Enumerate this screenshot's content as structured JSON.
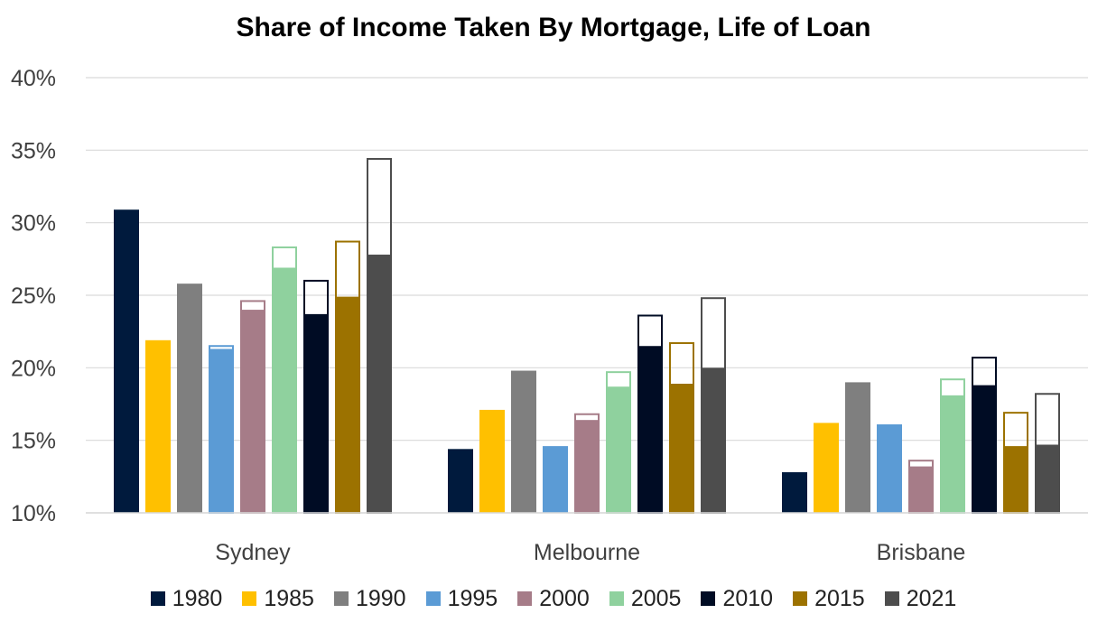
{
  "chart_data": {
    "type": "bar",
    "title": "Share of Income Taken By Mortgage, Life of Loan",
    "categories": [
      "Sydney",
      "Melbourne",
      "Brisbane"
    ],
    "yticks": [
      "10%",
      "15%",
      "20%",
      "25%",
      "30%",
      "35%",
      "40%"
    ],
    "ylim": [
      10,
      40
    ],
    "grid": true,
    "legend_placement": "bottom",
    "series": [
      {
        "name": "1980",
        "color": "#001a3d",
        "values": [
          30.9,
          14.4,
          12.8
        ],
        "outline": [
          null,
          null,
          null
        ]
      },
      {
        "name": "1985",
        "color": "#ffc000",
        "values": [
          21.9,
          17.1,
          16.2
        ],
        "outline": [
          null,
          null,
          null
        ]
      },
      {
        "name": "1990",
        "color": "#7f7f7f",
        "values": [
          25.8,
          19.8,
          19.0
        ],
        "outline": [
          null,
          null,
          null
        ]
      },
      {
        "name": "1995",
        "color": "#5b9bd5",
        "values": [
          21.3,
          14.6,
          16.1
        ],
        "outline": [
          21.5,
          null,
          null
        ]
      },
      {
        "name": "2000",
        "color": "#a67c88",
        "values": [
          24.0,
          16.4,
          13.2
        ],
        "outline": [
          24.6,
          16.8,
          13.6
        ]
      },
      {
        "name": "2005",
        "color": "#8fd19e",
        "values": [
          26.9,
          18.7,
          18.1
        ],
        "outline": [
          28.3,
          19.7,
          19.2
        ]
      },
      {
        "name": "2010",
        "color": "#000c24",
        "values": [
          23.7,
          21.5,
          18.8
        ],
        "outline": [
          26.0,
          23.6,
          20.7
        ]
      },
      {
        "name": "2015",
        "color": "#9c7200",
        "values": [
          24.9,
          18.9,
          14.6
        ],
        "outline": [
          28.7,
          21.7,
          16.9
        ]
      },
      {
        "name": "2021",
        "color": "#4d4d4d",
        "values": [
          27.8,
          20.0,
          14.7
        ],
        "outline": [
          34.4,
          24.8,
          18.2
        ]
      }
    ]
  }
}
